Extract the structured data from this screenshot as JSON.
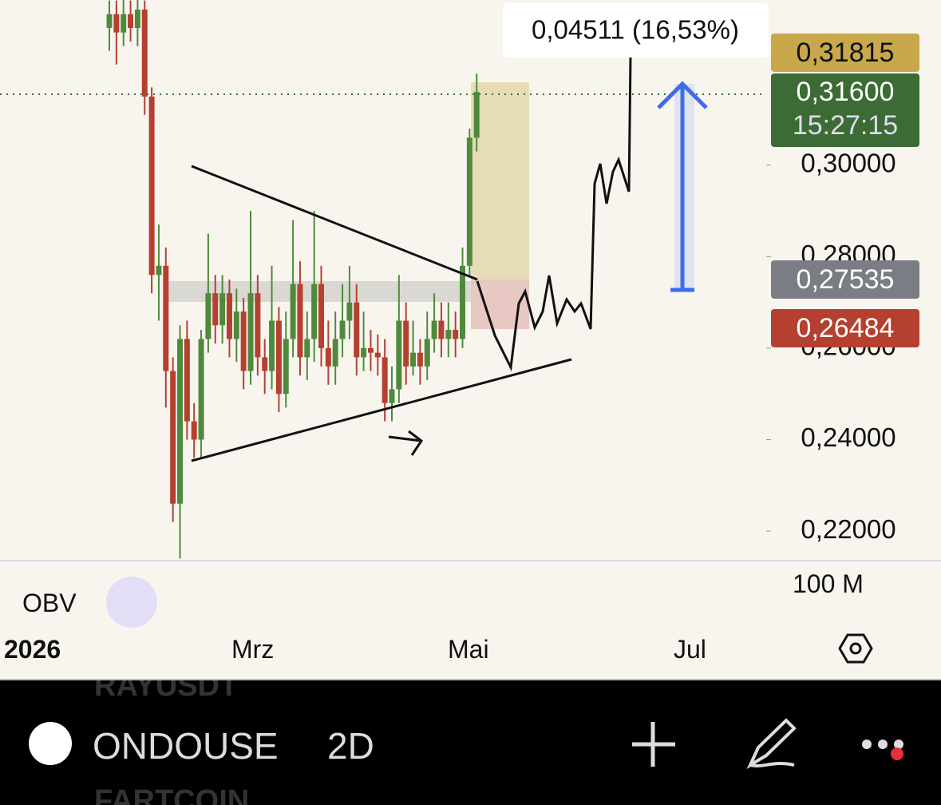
{
  "chart_data": {
    "type": "candlestick",
    "open": [
      0.33,
      0.333,
      0.329,
      0.333,
      0.33,
      0.334,
      0.315,
      0.276,
      0.278,
      0.255,
      0.226,
      0.262,
      0.244,
      0.24,
      0.262,
      0.272,
      0.265,
      0.272,
      0.262,
      0.268,
      0.255,
      0.272,
      0.258,
      0.255,
      0.266,
      0.25,
      0.262,
      0.274,
      0.258,
      0.262,
      0.274,
      0.26,
      0.256,
      0.262,
      0.266,
      0.27,
      0.258,
      0.26,
      0.259,
      0.258,
      0.248,
      0.251,
      0.266,
      0.256,
      0.259,
      0.256,
      0.262,
      0.266,
      0.262,
      0.264,
      0.262,
      0.278,
      0.306
    ],
    "high": [
      0.336,
      0.336,
      0.337,
      0.336,
      0.337,
      0.336,
      0.317,
      0.287,
      0.282,
      0.258,
      0.265,
      0.266,
      0.248,
      0.264,
      0.285,
      0.276,
      0.276,
      0.275,
      0.273,
      0.271,
      0.29,
      0.276,
      0.262,
      0.278,
      0.269,
      0.268,
      0.288,
      0.279,
      0.268,
      0.29,
      0.278,
      0.266,
      0.268,
      0.274,
      0.278,
      0.274,
      0.268,
      0.264,
      0.263,
      0.262,
      0.256,
      0.276,
      0.27,
      0.266,
      0.262,
      0.268,
      0.272,
      0.27,
      0.27,
      0.268,
      0.282,
      0.308,
      0.32
    ],
    "low": [
      0.325,
      0.322,
      0.326,
      0.327,
      0.326,
      0.311,
      0.272,
      0.266,
      0.247,
      0.222,
      0.214,
      0.24,
      0.236,
      0.236,
      0.259,
      0.261,
      0.261,
      0.258,
      0.257,
      0.251,
      0.252,
      0.254,
      0.25,
      0.251,
      0.246,
      0.247,
      0.258,
      0.254,
      0.253,
      0.257,
      0.256,
      0.252,
      0.252,
      0.258,
      0.262,
      0.254,
      0.255,
      0.255,
      0.254,
      0.244,
      0.244,
      0.248,
      0.252,
      0.254,
      0.252,
      0.253,
      0.259,
      0.258,
      0.258,
      0.258,
      0.26,
      0.276,
      0.303
    ],
    "close": [
      0.333,
      0.329,
      0.333,
      0.33,
      0.334,
      0.315,
      0.276,
      0.278,
      0.255,
      0.226,
      0.262,
      0.244,
      0.24,
      0.262,
      0.272,
      0.265,
      0.272,
      0.262,
      0.268,
      0.255,
      0.272,
      0.258,
      0.255,
      0.266,
      0.25,
      0.262,
      0.274,
      0.258,
      0.262,
      0.274,
      0.26,
      0.256,
      0.262,
      0.266,
      0.27,
      0.258,
      0.26,
      0.259,
      0.258,
      0.248,
      0.251,
      0.266,
      0.256,
      0.259,
      0.256,
      0.262,
      0.266,
      0.262,
      0.264,
      0.262,
      0.278,
      0.306,
      0.316
    ],
    "up_color": "#4f8a3c",
    "down_color": "#b5402f",
    "ylim": [
      0.2139,
      0.3361
    ],
    "yticks": [
      {
        "value": 0.22,
        "label": "0,22000"
      },
      {
        "value": 0.24,
        "label": "0,24000"
      },
      {
        "value": 0.26,
        "label": "0,26000"
      },
      {
        "value": 0.28,
        "label": "0,28000"
      },
      {
        "value": 0.3,
        "label": "0,30000"
      }
    ]
  },
  "measure_label": "0,04511 (16,53%)",
  "price_tags": [
    "0,31815",
    "0,31600",
    "15:27:15",
    "0,27535",
    "0,26484"
  ],
  "volume_axis_label": "100 M",
  "indicator": "OBV",
  "time_axis": [
    "2026",
    "Mrz",
    "Mai",
    "Jul"
  ],
  "toolbar": {
    "symbol": "ONDOUSE",
    "interval": "2D"
  },
  "watchlist_ghost": [
    "RAYUSDT",
    "FARTCOIN"
  ]
}
